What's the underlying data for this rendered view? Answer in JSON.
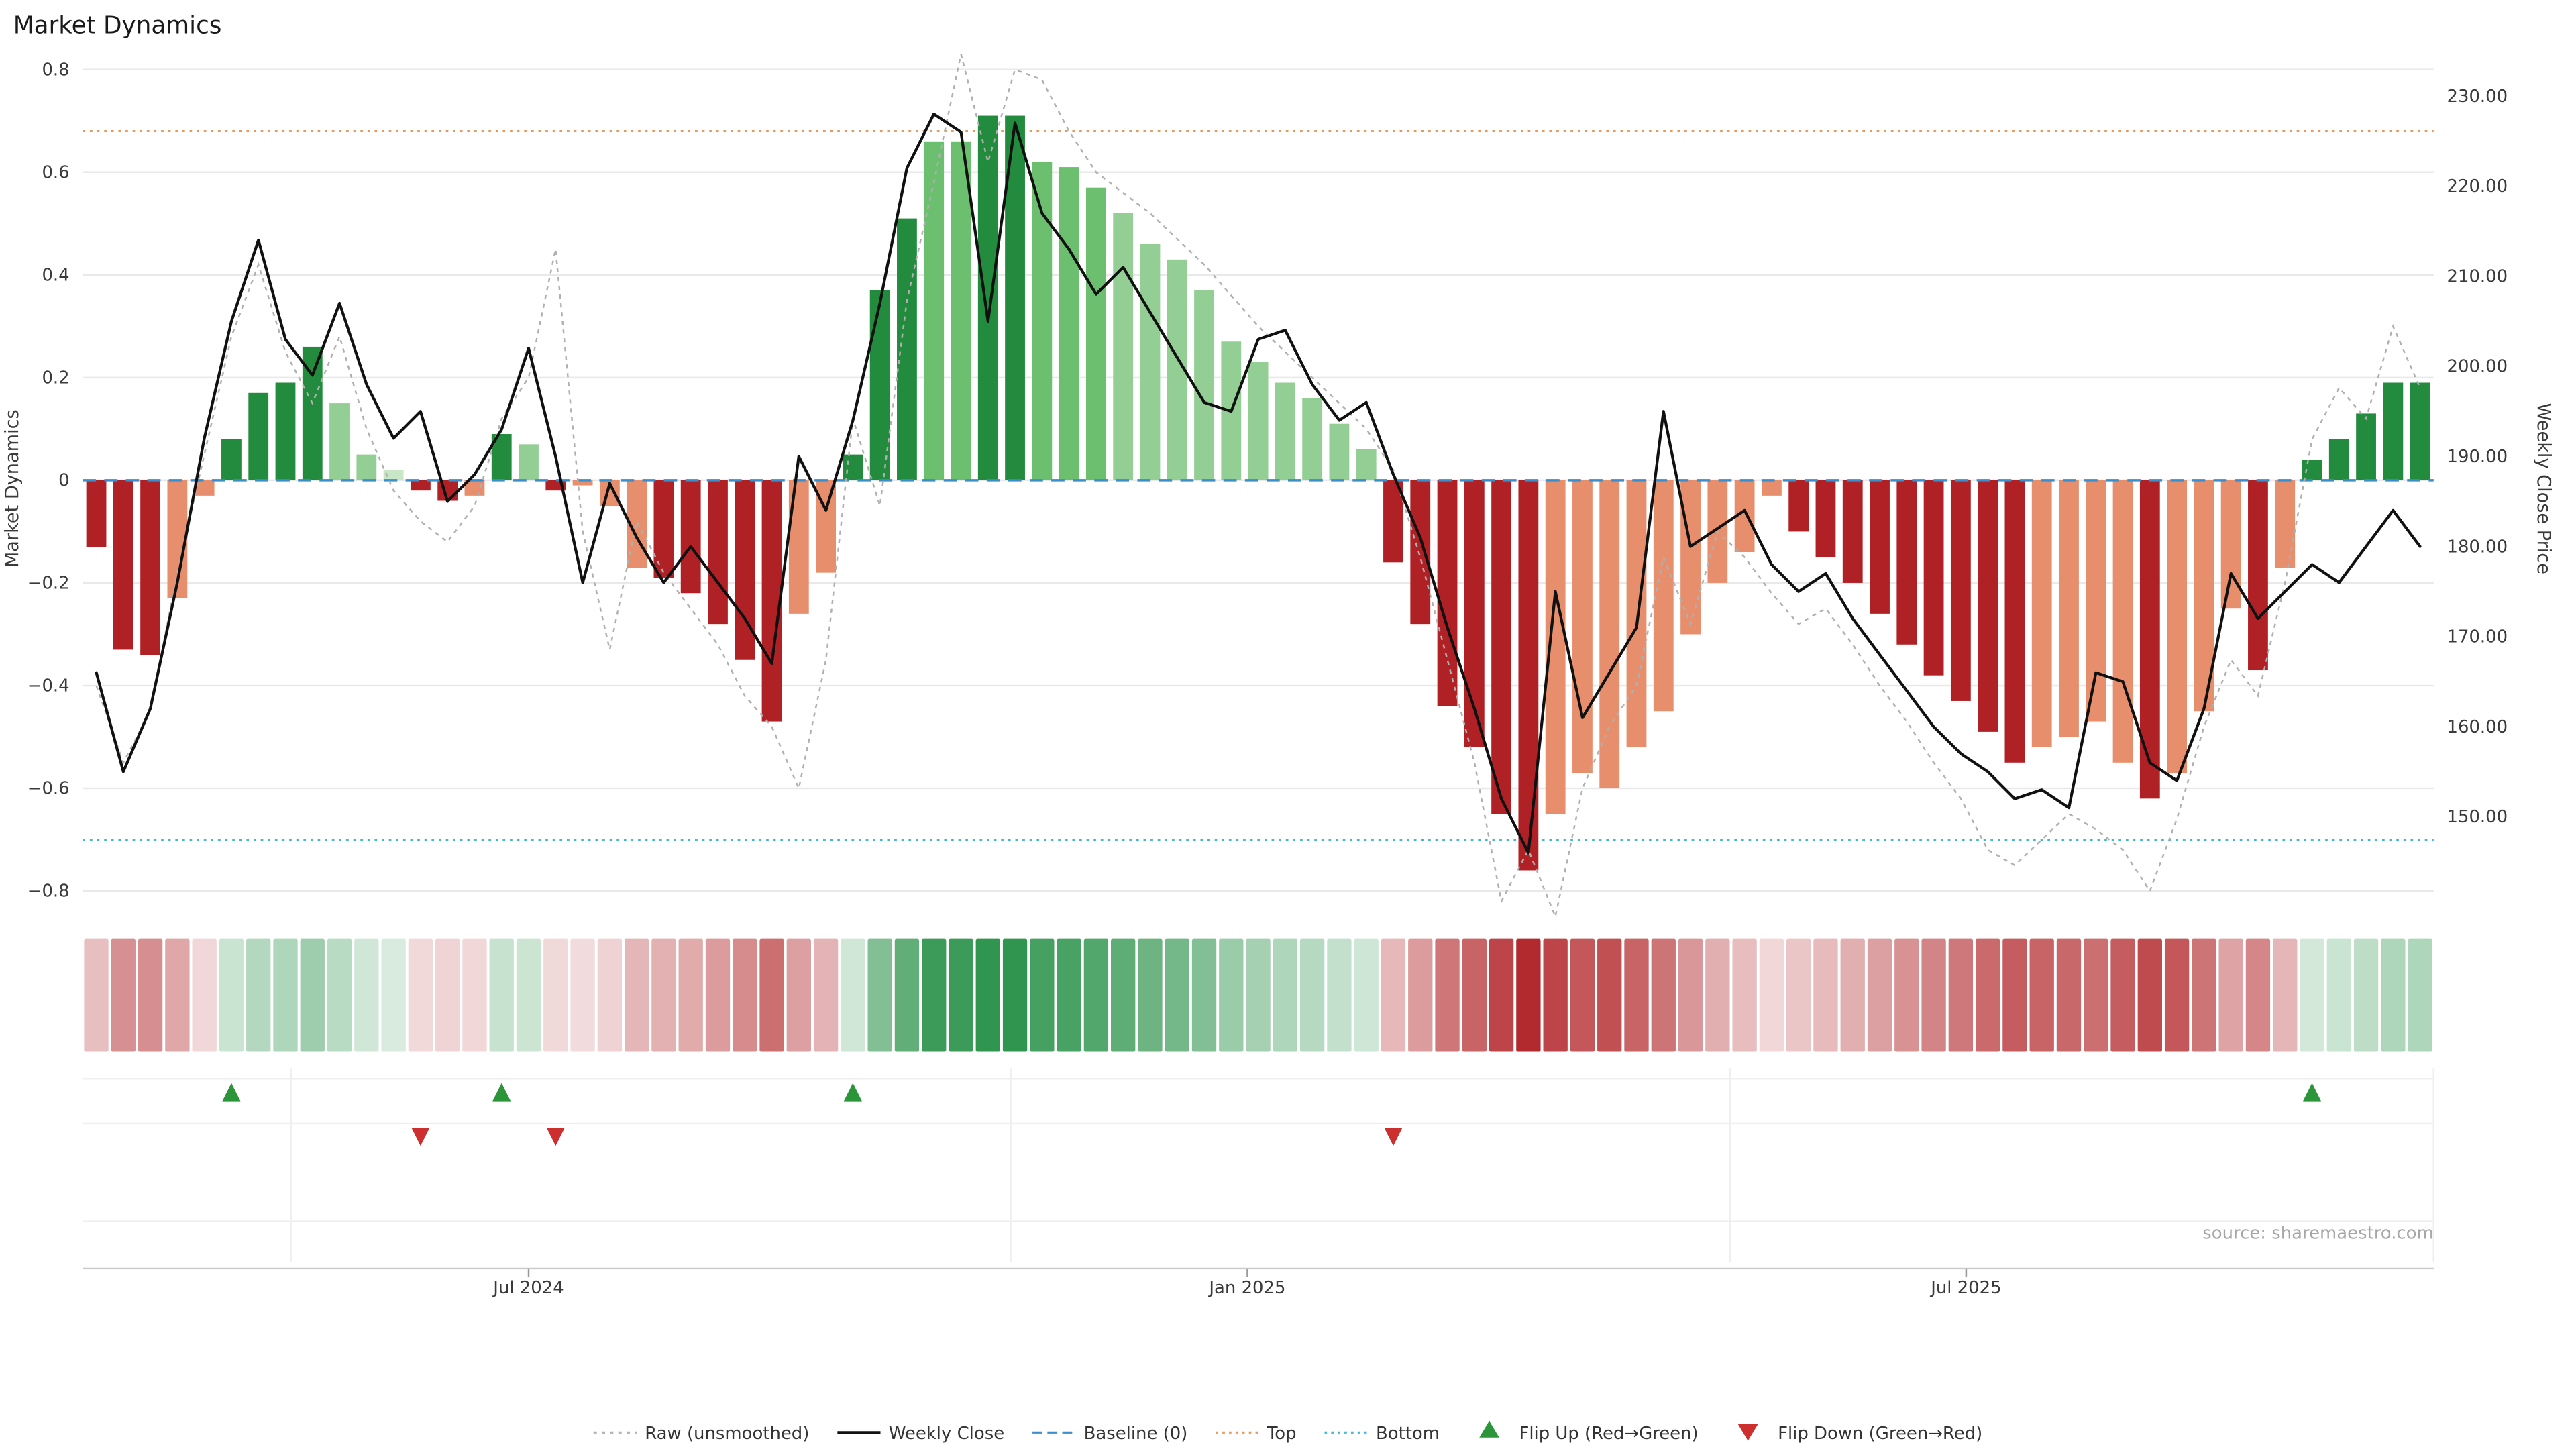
{
  "title": "Market Dynamics",
  "source_note": "source: sharemaestro.com",
  "colors": {
    "green_dark": "#238b3d",
    "green_mid": "#6cbf6e",
    "green_light": "#93ce94",
    "green_faint": "#c9e7c6",
    "red_dark": "#b02125",
    "salmon": "#e78e6d",
    "salmon_light": "#f3c0ad",
    "weekly_close": "#111111",
    "raw": "#b0b0b0",
    "baseline": "#3c8dcb",
    "top": "#e8995a",
    "bottom": "#41b6d9",
    "flip_up": "#2a9639",
    "flip_down": "#cd2f2f"
  },
  "chart_data": {
    "type": "combo",
    "title": "Market Dynamics",
    "n_weeks": 87,
    "x_ticks": [
      {
        "label": "Jul 2024",
        "index": 16
      },
      {
        "label": "Jan 2025",
        "index": 42.6
      },
      {
        "label": "Jul 2025",
        "index": 69.2
      }
    ],
    "left_axis": {
      "label": "Market Dynamics",
      "tick_labels": [
        "0.8",
        "0.6",
        "0.4",
        "0.2",
        "0",
        "−0.2",
        "−0.4",
        "−0.6",
        "−0.8"
      ],
      "tick_values": [
        0.8,
        0.6,
        0.4,
        0.2,
        0,
        -0.2,
        -0.4,
        -0.6,
        -0.8
      ],
      "range": [
        -0.86,
        0.82
      ]
    },
    "right_axis": {
      "label": "Weekly Close Price",
      "tick_labels": [
        "230.00",
        "220.00",
        "210.00",
        "200.00",
        "190.00",
        "180.00",
        "170.00",
        "160.00",
        "150.00"
      ],
      "tick_values": [
        230,
        220,
        210,
        200,
        190,
        180,
        170,
        160,
        150
      ]
    },
    "reference": {
      "baseline": 0,
      "top": 0.68,
      "bottom": -0.7
    },
    "bars": {
      "name": "Market Dynamics (smoothed bars)",
      "axis": "left",
      "values": [
        -0.13,
        -0.33,
        -0.34,
        -0.23,
        -0.03,
        0.08,
        0.17,
        0.19,
        0.26,
        0.15,
        0.05,
        0.02,
        -0.02,
        -0.04,
        -0.03,
        0.09,
        0.07,
        -0.02,
        -0.01,
        -0.05,
        -0.17,
        -0.19,
        -0.22,
        -0.28,
        -0.35,
        -0.47,
        -0.26,
        -0.18,
        0.05,
        0.37,
        0.51,
        0.66,
        0.66,
        0.71,
        0.71,
        0.62,
        0.61,
        0.57,
        0.52,
        0.46,
        0.43,
        0.37,
        0.27,
        0.23,
        0.19,
        0.16,
        0.11,
        0.06,
        -0.16,
        -0.28,
        -0.44,
        -0.52,
        -0.65,
        -0.76,
        -0.65,
        -0.57,
        -0.6,
        -0.52,
        -0.45,
        -0.3,
        -0.2,
        -0.14,
        -0.03,
        -0.1,
        -0.15,
        -0.2,
        -0.26,
        -0.32,
        -0.38,
        -0.43,
        -0.49,
        -0.55,
        -0.52,
        -0.5,
        -0.47,
        -0.55,
        -0.62,
        -0.57,
        -0.45,
        -0.25,
        -0.37,
        -0.17,
        0.04,
        0.08,
        0.13,
        0.19,
        0.19
      ],
      "tones": [
        "rd",
        "rd",
        "rd",
        "rs",
        "rs",
        "gd",
        "gd",
        "gd",
        "gd",
        "gl",
        "gl",
        "gf",
        "rd",
        "rd",
        "rs",
        "gd",
        "gl",
        "rd",
        "rs",
        "rs",
        "rs",
        "rd",
        "rd",
        "rd",
        "rd",
        "rd",
        "rs",
        "rs",
        "gd",
        "gd",
        "gd",
        "gm",
        "gm",
        "gd",
        "gd",
        "gm",
        "gm",
        "gm",
        "gl",
        "gl",
        "gl",
        "gl",
        "gl",
        "gl",
        "gl",
        "gl",
        "gl",
        "gl",
        "rd",
        "rd",
        "rd",
        "rd",
        "rd",
        "rd",
        "rs",
        "rs",
        "rs",
        "rs",
        "rs",
        "rs",
        "rs",
        "rs",
        "rs",
        "rd",
        "rd",
        "rd",
        "rd",
        "rd",
        "rd",
        "rd",
        "rd",
        "rd",
        "rs",
        "rs",
        "rs",
        "rs",
        "rd",
        "rs",
        "rs",
        "rs",
        "rd",
        "rs",
        "gd",
        "gd",
        "gd",
        "gd",
        "gd"
      ]
    },
    "raw_line": {
      "name": "Raw (unsmoothed)",
      "axis": "left",
      "values": [
        -0.4,
        -0.55,
        -0.45,
        -0.18,
        0.05,
        0.28,
        0.42,
        0.25,
        0.15,
        0.28,
        0.1,
        -0.02,
        -0.08,
        -0.12,
        -0.05,
        0.12,
        0.2,
        0.45,
        -0.1,
        -0.33,
        -0.08,
        -0.18,
        -0.25,
        -0.32,
        -0.42,
        -0.48,
        -0.6,
        -0.35,
        0.12,
        -0.05,
        0.35,
        0.58,
        0.83,
        0.62,
        0.8,
        0.78,
        0.68,
        0.6,
        0.56,
        0.52,
        0.47,
        0.42,
        0.36,
        0.3,
        0.25,
        0.2,
        0.15,
        0.1,
        0.02,
        -0.15,
        -0.35,
        -0.55,
        -0.82,
        -0.72,
        -0.85,
        -0.6,
        -0.48,
        -0.4,
        -0.15,
        -0.28,
        -0.1,
        -0.15,
        -0.22,
        -0.28,
        -0.25,
        -0.32,
        -0.4,
        -0.47,
        -0.55,
        -0.62,
        -0.72,
        -0.75,
        -0.7,
        -0.65,
        -0.68,
        -0.72,
        -0.8,
        -0.66,
        -0.48,
        -0.35,
        -0.42,
        -0.2,
        0.08,
        0.18,
        0.12,
        0.3,
        0.18
      ]
    },
    "close_line": {
      "name": "Weekly Close",
      "axis": "right",
      "values": [
        166,
        155,
        162,
        176,
        192,
        205,
        214,
        203,
        199,
        207,
        198,
        192,
        195,
        185,
        188,
        193,
        202,
        190,
        176,
        187,
        181,
        176,
        180,
        176,
        172,
        167,
        190,
        184,
        194,
        207,
        222,
        228,
        226,
        205,
        227,
        217,
        213,
        208,
        211,
        206,
        201,
        196,
        195,
        203,
        204,
        198,
        194,
        196,
        188,
        181,
        171,
        162,
        152,
        146,
        175,
        161,
        166,
        171,
        195,
        180,
        182,
        184,
        178,
        175,
        177,
        172,
        168,
        164,
        160,
        157,
        155,
        152,
        153,
        151,
        166,
        165,
        156,
        154,
        162,
        177,
        172,
        175,
        178,
        176,
        180,
        184,
        180
      ]
    },
    "heatmap": {
      "name": "Dynamics heatmap strip",
      "source": "bars"
    },
    "flips": {
      "up_indices": [
        5,
        15,
        28,
        82
      ],
      "down_indices": [
        12,
        17,
        48
      ]
    }
  },
  "legend": {
    "items": [
      {
        "label": "Raw (unsmoothed)",
        "kind": "line",
        "dash": "2 3",
        "color_key": "raw"
      },
      {
        "label": "Weekly Close",
        "kind": "line",
        "dash": "",
        "color_key": "weekly_close"
      },
      {
        "label": "Baseline (0)",
        "kind": "line",
        "dash": "6 3",
        "color_key": "baseline"
      },
      {
        "label": "Top",
        "kind": "line",
        "dash": "1.5 2.5",
        "color_key": "top"
      },
      {
        "label": "Bottom",
        "kind": "line",
        "dash": "1.5 2.5",
        "color_key": "bottom"
      },
      {
        "label": "Flip Up (Red→Green)",
        "kind": "tri-up",
        "color_key": "flip_up"
      },
      {
        "label": "Flip Down (Green→Red)",
        "kind": "tri-down",
        "color_key": "flip_down"
      }
    ]
  }
}
